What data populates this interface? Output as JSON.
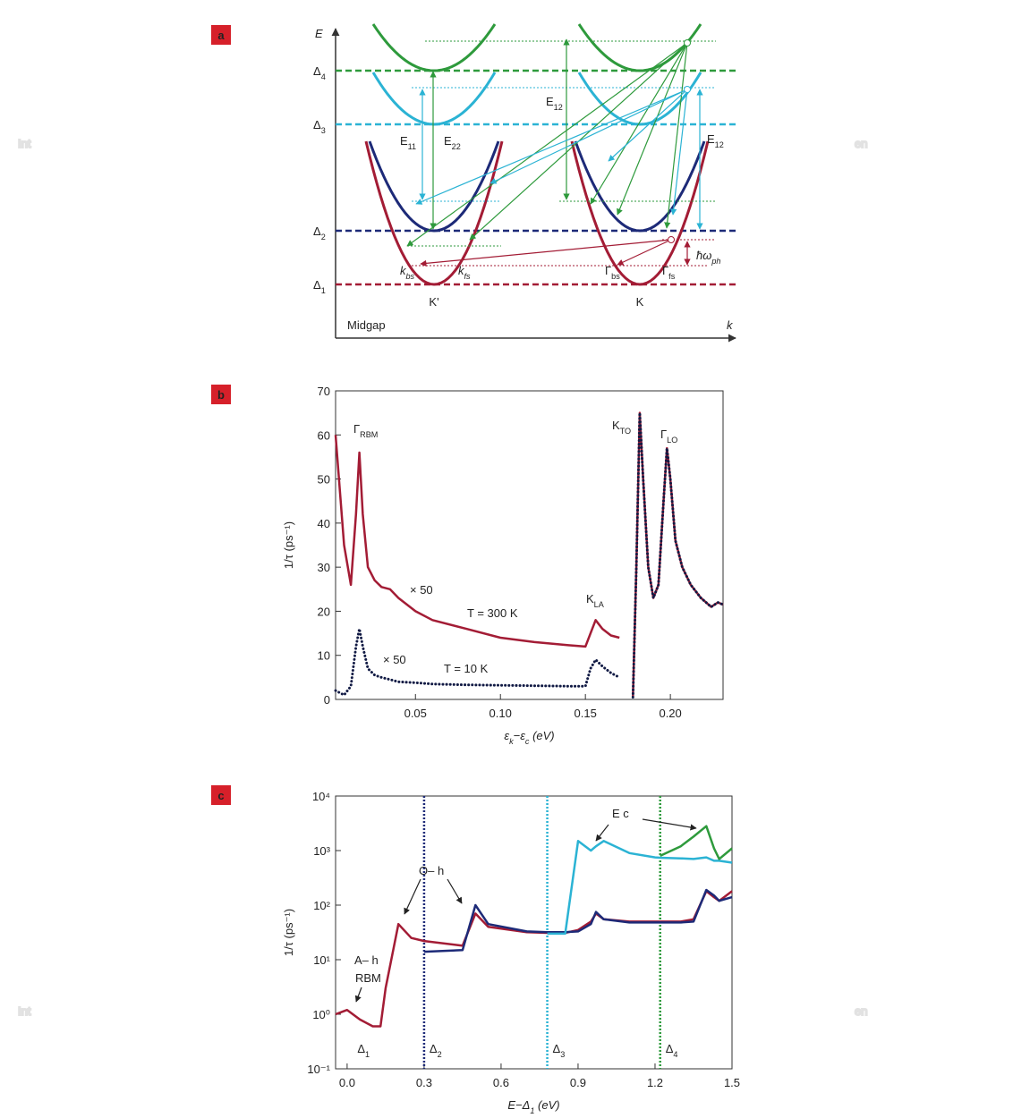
{
  "watermark": [
    "Int",
    "en"
  ],
  "panel_labels": [
    "a",
    "b",
    "c"
  ],
  "diagram": {
    "axis_y": "E",
    "axis_x": "k",
    "midgap": "Midgap",
    "levels": [
      {
        "label": [
          {
            "text": "Δ"
          },
          {
            "text": "4",
            "sub": true
          }
        ],
        "color": "#2e9a3c"
      },
      {
        "label": [
          {
            "text": "Δ"
          },
          {
            "text": "3",
            "sub": true
          }
        ],
        "color": "#2bb3d4"
      },
      {
        "label": [
          {
            "text": "Δ"
          },
          {
            "text": "2",
            "sub": true
          }
        ],
        "color": "#1d2a78"
      },
      {
        "label": [
          {
            "text": "Δ"
          },
          {
            "text": "1",
            "sub": true
          }
        ],
        "color": "#a31c35"
      }
    ],
    "valleys": [
      "K'",
      "K"
    ],
    "transitions": [
      [
        {
          "text": "E"
        },
        {
          "text": "11",
          "sub": true
        }
      ],
      [
        {
          "text": "E"
        },
        {
          "text": "22",
          "sub": true
        }
      ],
      [
        {
          "text": "E"
        },
        {
          "text": "12",
          "sub": true
        }
      ],
      [
        {
          "text": "E"
        },
        {
          "text": "12",
          "sub": true
        }
      ]
    ],
    "momenta": [
      [
        {
          "text": "k"
        },
        {
          "text": "bs",
          "sub": true
        }
      ],
      [
        {
          "text": "k"
        },
        {
          "text": "fs",
          "sub": true
        }
      ],
      [
        {
          "text": "Γ"
        },
        {
          "text": "bs",
          "sub": true
        }
      ],
      [
        {
          "text": "Γ"
        },
        {
          "text": "fs",
          "sub": true
        }
      ]
    ],
    "phonon": [
      {
        "text": "ħω"
      },
      {
        "text": "ph",
        "sub": true
      }
    ]
  },
  "chart_data": [
    {
      "type": "line",
      "x_label": [
        {
          "text": "ε"
        },
        {
          "text": "k",
          "sub": true
        },
        {
          "text": "−ε"
        },
        {
          "text": "c",
          "sub": true
        },
        {
          "text": "  (eV)"
        }
      ],
      "y_label": "1/τ (ps⁻¹)",
      "x": [
        0.003,
        0.008,
        0.012,
        0.015,
        0.017,
        0.019,
        0.022,
        0.026,
        0.03,
        0.035,
        0.04,
        0.05,
        0.06,
        0.08,
        0.1,
        0.12,
        0.14,
        0.15,
        0.153,
        0.156,
        0.16,
        0.165,
        0.17,
        0.175,
        0.178,
        0.18,
        0.182,
        0.184,
        0.187,
        0.19,
        0.193,
        0.196,
        0.198,
        0.2,
        0.203,
        0.207,
        0.212,
        0.218,
        0.224,
        0.228,
        0.231
      ],
      "series": [
        {
          "color": "#a31c35",
          "dotted": false,
          "values": [
            60,
            35,
            26,
            42,
            56,
            42,
            30,
            27,
            25.5,
            25,
            23,
            20,
            18,
            16,
            14,
            13,
            12.3,
            12,
            15,
            18,
            16,
            14.5,
            14,
            null,
            0.5,
            30,
            65,
            50,
            30,
            23,
            26,
            45,
            57,
            50,
            36,
            30,
            26,
            23,
            21,
            22,
            21.5
          ]
        },
        {
          "color": "#111a44",
          "dotted": true,
          "values": [
            2,
            1,
            3,
            12,
            16,
            12,
            7,
            5.5,
            5,
            4.5,
            4,
            3.8,
            3.5,
            3.3,
            3.2,
            3.1,
            3,
            3,
            7,
            9,
            7.5,
            6,
            5,
            null,
            0.5,
            30,
            65,
            50,
            30,
            23,
            26,
            45,
            57,
            50,
            36,
            30,
            26,
            23,
            21,
            22,
            21.5
          ]
        }
      ],
      "xlim": [
        0.003,
        0.231
      ],
      "ylim": [
        0,
        70
      ],
      "xticks": [
        0.05,
        {
          "value": 0.1,
          "label": "0.10"
        },
        0.15,
        {
          "value": 0.2,
          "label": "0.20"
        }
      ],
      "yticks": [
        0,
        10,
        20,
        30,
        40,
        50,
        60,
        70
      ],
      "annotations": [
        [
          {
            "text": "Γ"
          },
          {
            "text": "RBM",
            "sub": true
          }
        ],
        "× 50",
        "T = 300 K",
        "× 50",
        "T = 10 K",
        [
          {
            "text": "K"
          },
          {
            "text": "LA",
            "sub": true
          }
        ],
        [
          {
            "text": "K"
          },
          {
            "text": "TO",
            "sub": true
          }
        ],
        [
          {
            "text": "Γ"
          },
          {
            "text": "LO",
            "sub": true
          }
        ]
      ]
    },
    {
      "type": "line",
      "log_y": true,
      "x_label": [
        {
          "text": "E−Δ"
        },
        {
          "text": "1",
          "sub": true
        },
        {
          "text": " (eV)"
        }
      ],
      "y_label": "1/τ (ps⁻¹)",
      "x": [
        -0.045,
        0,
        0.05,
        0.1,
        0.13,
        0.15,
        0.2,
        0.25,
        0.3,
        0.45,
        0.5,
        0.55,
        0.7,
        0.78,
        0.85,
        0.9,
        0.95,
        0.97,
        1.0,
        1.1,
        1.2,
        1.22,
        1.3,
        1.35,
        1.4,
        1.43,
        1.45,
        1.5
      ],
      "series": [
        {
          "color": "#a31c35",
          "values": [
            1,
            1.2,
            0.8,
            0.6,
            0.6,
            3,
            45,
            25,
            22,
            18,
            70,
            40,
            32,
            31,
            31,
            35,
            50,
            70,
            55,
            50,
            50,
            50,
            50,
            55,
            180,
            140,
            120,
            180
          ]
        },
        {
          "color": "#1d2a78",
          "values": [
            null,
            null,
            null,
            null,
            null,
            null,
            null,
            null,
            14,
            15,
            100,
            45,
            33,
            32,
            32,
            33,
            45,
            75,
            55,
            48,
            48,
            48,
            48,
            50,
            190,
            150,
            120,
            140
          ]
        },
        {
          "color": "#2bb3d4",
          "values": [
            null,
            null,
            null,
            null,
            null,
            null,
            null,
            null,
            null,
            null,
            null,
            null,
            null,
            30,
            30,
            1500,
            1000,
            1200,
            1500,
            900,
            750,
            740,
            720,
            700,
            750,
            650,
            650,
            600
          ]
        },
        {
          "color": "#2e9a3c",
          "values": [
            null,
            null,
            null,
            null,
            null,
            null,
            null,
            null,
            null,
            null,
            null,
            null,
            null,
            null,
            null,
            null,
            null,
            null,
            null,
            null,
            null,
            800,
            1200,
            1800,
            2800,
            1100,
            700,
            1100
          ]
        }
      ],
      "xlim": [
        -0.045,
        1.5
      ],
      "ylim": [
        0.1,
        10000
      ],
      "xticks": [
        {
          "value": 0,
          "label": "0.0"
        },
        0.3,
        0.6,
        0.9,
        1.2,
        1.5
      ],
      "yticks": [
        {
          "value": 10000,
          "label": "10⁴"
        },
        {
          "value": 1000,
          "label": "10³"
        },
        {
          "value": 100,
          "label": "10²"
        },
        {
          "value": 10,
          "label": "10¹"
        },
        {
          "value": 1,
          "label": "10⁰"
        },
        {
          "value": 0.1,
          "label": "10⁻¹"
        }
      ],
      "vlines": [
        {
          "x": 0.3,
          "color": "#1d2a78",
          "label": [
            {
              "text": "Δ"
            },
            {
              "text": "2",
              "sub": true
            }
          ]
        },
        {
          "x": 0.78,
          "color": "#2bb3d4",
          "label": [
            {
              "text": "Δ"
            },
            {
              "text": "3",
              "sub": true
            }
          ]
        },
        {
          "x": 1.22,
          "color": "#2e9a3c",
          "label": [
            {
              "text": "Δ"
            },
            {
              "text": "4",
              "sub": true
            }
          ]
        }
      ],
      "delta1_label": [
        {
          "text": "Δ"
        },
        {
          "text": "1",
          "sub": true
        }
      ],
      "delta1_color": "#a31c35",
      "annotations": [
        "E c",
        "O– h",
        "A– h",
        "RBM"
      ]
    }
  ]
}
